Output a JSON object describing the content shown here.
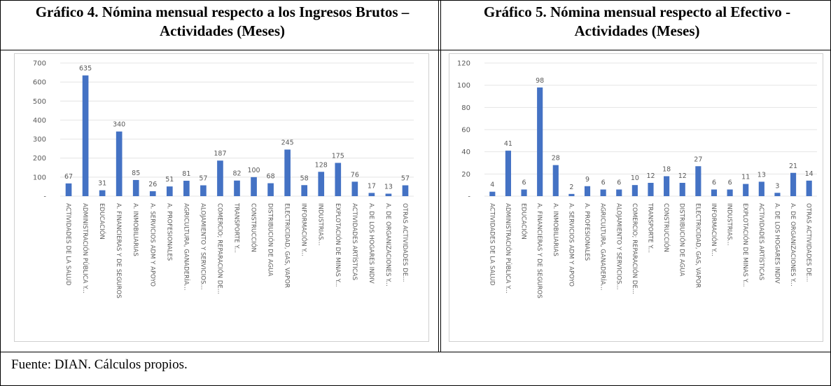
{
  "chart_data": [
    {
      "type": "bar",
      "title": "Gráfico 4. Nómina mensual respecto a los Ingresos Brutos – Actividades (Meses)",
      "categories": [
        "ACTIVIDADES DE LA SALUD",
        "ADMINISTRACIÓN PÚBLICA Y...",
        "EDUCACIÓN",
        "A. FINANCIERAS Y DE SEGUROS",
        "A. INMOBILIARIAS",
        "A. SERVICIOS ADM Y APOYO",
        "A. PROFESIONALES",
        "AGRICULTURA, GANADERÍA...",
        "ALOJAMIENTO Y SERVICIOS...",
        "COMERCIO; REPARACIÓN DE...",
        "TRANSPORTE Y...",
        "CONSTRUCCIÓN",
        "DISTRIBUCIÓN DE AGUA",
        "ELECTRICIDAD, GAS, VAPOR",
        "INFORMACIÓN Y...",
        "INDUSTRIAS...",
        "EXPLOTACIÓN DE MINAS Y...",
        "ACTIVIDADES ARTÍSTICAS",
        "A. DE LOS HOGARES INDIV",
        "A. DE ORGANIZACIONES Y...",
        "OTRAS ACTIVIDADES DE..."
      ],
      "values": [
        67,
        635,
        31,
        340,
        85,
        26,
        51,
        81,
        57,
        187,
        82,
        100,
        68,
        245,
        58,
        128,
        175,
        76,
        17,
        13,
        57
      ],
      "color": "#4472c4",
      "ylim": [
        0,
        700
      ],
      "yticks": [
        {
          "value": 0,
          "label": "-"
        },
        100,
        200,
        300,
        400,
        500,
        600,
        700
      ],
      "grid": true
    },
    {
      "type": "bar",
      "title": "Gráfico 5. Nómina mensual respecto al Efectivo - Actividades (Meses)",
      "categories": [
        "ACTIVIDADES DE LA SALUD",
        "ADMINISTRACIÓN PÚBLICA Y...",
        "EDUCACIÓN",
        "A. FINANCIERAS Y DE SEGUROS",
        "A. INMOBILIARIAS",
        "A. SERVICIOS ADM Y APOYO",
        "A. PROFESIONALES",
        "AGRICULTURA, GANADERÍA...",
        "ALOJAMIENTO Y SERVICIOS...",
        "COMERCIO; REPARACIÓN DE...",
        "TRANSPORTE Y...",
        "CONSTRUCCIÓN",
        "DISTRIBUCIÓN DE AGUA",
        "ELECTRICIDAD, GAS, VAPOR",
        "INFORMACIÓN Y...",
        "INDUSTRIAS...",
        "EXPLOTACIÓN DE MINAS Y...",
        "ACTIVIDADES ARTÍSTICAS",
        "A. DE LOS HOGARES INDIV",
        "A. DE ORGANIZACIONES Y...",
        "OTRAS ACTIVIDADES DE..."
      ],
      "values": [
        4,
        41,
        6,
        98,
        28,
        2,
        9,
        6,
        6,
        10,
        12,
        18,
        12,
        27,
        6,
        6,
        11,
        13,
        3,
        21,
        14
      ],
      "color": "#4472c4",
      "ylim": [
        0,
        120
      ],
      "yticks": [
        {
          "value": 0,
          "label": "-"
        },
        20,
        40,
        60,
        80,
        100,
        120
      ],
      "grid": true
    }
  ],
  "source": "Fuente: DIAN. Cálculos propios."
}
